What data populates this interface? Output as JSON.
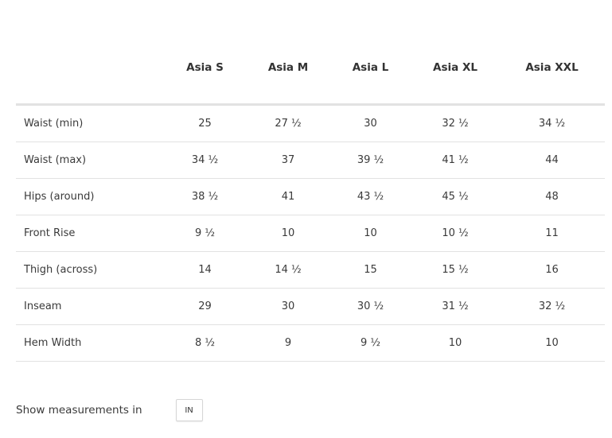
{
  "size_chart": {
    "columns": [
      "",
      "Asia S",
      "Asia M",
      "Asia L",
      "Asia XL",
      "Asia XXL"
    ],
    "rows": [
      {
        "label": "Waist (min)",
        "values": [
          "25",
          "27 ½",
          "30",
          "32 ½",
          "34 ½"
        ]
      },
      {
        "label": "Waist (max)",
        "values": [
          "34 ½",
          "37",
          "39 ½",
          "41 ½",
          "44"
        ]
      },
      {
        "label": "Hips (around)",
        "values": [
          "38 ½",
          "41",
          "43 ½",
          "45 ½",
          "48"
        ]
      },
      {
        "label": "Front Rise",
        "values": [
          "9 ½",
          "10",
          "10",
          "10 ½",
          "11"
        ]
      },
      {
        "label": "Thigh (across)",
        "values": [
          "14",
          "14 ½",
          "15",
          "15 ½",
          "16"
        ]
      },
      {
        "label": "Inseam",
        "values": [
          "29",
          "30",
          "30 ½",
          "31 ½",
          "32 ½"
        ]
      },
      {
        "label": "Hem Width",
        "values": [
          "8 ½",
          "9",
          "9 ½",
          "10",
          "10"
        ]
      }
    ]
  },
  "units": {
    "label": "Show measurements in",
    "current": "IN"
  }
}
